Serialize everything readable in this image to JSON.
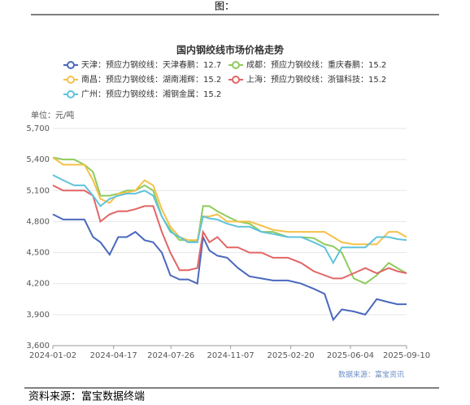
{
  "header": "图：",
  "footer": "资料来源：富宝数据终端",
  "chart_data": {
    "type": "line",
    "title": "国内钢绞线市场价格走势",
    "y_label": "单位：元/吨",
    "source": "数据来源：富宝资讯",
    "grid": true,
    "x": [
      "2024-01-02",
      "2024-01-20",
      "2024-02-08",
      "2024-02-26",
      "2024-03-12",
      "2024-03-25",
      "2024-04-10",
      "2024-04-25",
      "2024-05-10",
      "2024-05-25",
      "2024-06-10",
      "2024-06-25",
      "2024-07-10",
      "2024-07-25",
      "2024-08-10",
      "2024-08-25",
      "2024-09-10",
      "2024-09-20",
      "2024-10-01",
      "2024-10-15",
      "2024-11-01",
      "2024-11-20",
      "2024-12-10",
      "2024-12-31",
      "2025-01-20",
      "2025-02-15",
      "2025-03-10",
      "2025-04-01",
      "2025-04-20",
      "2025-05-05",
      "2025-05-20",
      "2025-06-10",
      "2025-06-30",
      "2025-07-20",
      "2025-08-10",
      "2025-08-25",
      "2025-09-10"
    ],
    "xlim": [
      "2024-01-02",
      "2025-09-10"
    ],
    "xticks": [
      "2024-01-02",
      "2024-04-17",
      "2024-07-26",
      "2024-11-07",
      "2025-02-20",
      "2025-06-04",
      "2025-09-10"
    ],
    "ylim": [
      3600,
      5700
    ],
    "yticks": [
      {
        "value": 3600,
        "label": "3,600"
      },
      {
        "value": 3900,
        "label": "3,900"
      },
      {
        "value": 4200,
        "label": "4,200"
      },
      {
        "value": 4500,
        "label": "4,500"
      },
      {
        "value": 4800,
        "label": "4,800"
      },
      {
        "value": 5100,
        "label": "5,100"
      },
      {
        "value": 5400,
        "label": "5,400"
      },
      {
        "value": 5700,
        "label": "5,700"
      }
    ],
    "series": [
      {
        "name": "天津：预应力钢绞线：天津春鹏：12.7",
        "color": "#4a68bd",
        "values": [
          4870,
          4820,
          4820,
          4820,
          4650,
          4600,
          4480,
          4650,
          4650,
          4700,
          4620,
          4600,
          4500,
          4280,
          4240,
          4240,
          4200,
          4650,
          4520,
          4470,
          4450,
          4350,
          4270,
          4250,
          4230,
          4230,
          4200,
          4150,
          4100,
          3850,
          3950,
          3930,
          3900,
          4050,
          4020,
          4000,
          4000
        ]
      },
      {
        "name": "成都：预应力钢绞线：重庆春鹏：15.2",
        "color": "#8ecb5c",
        "values": [
          5420,
          5400,
          5400,
          5350,
          5280,
          5050,
          5050,
          5070,
          5100,
          5100,
          5150,
          5100,
          4850,
          4720,
          4620,
          4620,
          4600,
          4950,
          4950,
          4900,
          4850,
          4800,
          4780,
          4700,
          4700,
          4650,
          4650,
          4640,
          4580,
          4560,
          4500,
          4250,
          4200,
          4280,
          4400,
          4350,
          4300
        ]
      },
      {
        "name": "南昌：预应力钢绞线：湖南湘辉：15.2",
        "color": "#f4c14a",
        "values": [
          5420,
          5350,
          5350,
          5350,
          5200,
          5020,
          4980,
          5070,
          5080,
          5100,
          5200,
          5150,
          4920,
          4750,
          4650,
          4620,
          4620,
          4850,
          4850,
          4870,
          4800,
          4800,
          4800,
          4760,
          4720,
          4700,
          4700,
          4700,
          4700,
          4650,
          4600,
          4580,
          4580,
          4580,
          4700,
          4700,
          4650
        ]
      },
      {
        "name": "上海：预应力钢绞线：浙锚科技：15.2",
        "color": "#e26565",
        "values": [
          5150,
          5100,
          5100,
          5100,
          5050,
          4800,
          4870,
          4900,
          4900,
          4920,
          4950,
          4950,
          4700,
          4500,
          4330,
          4330,
          4350,
          4700,
          4600,
          4650,
          4550,
          4550,
          4500,
          4500,
          4450,
          4450,
          4400,
          4320,
          4280,
          4250,
          4250,
          4300,
          4350,
          4300,
          4350,
          4320,
          4300
        ]
      },
      {
        "name": "广州：预应力钢绞线：湘钢金属：15.2",
        "color": "#5fc3dc",
        "values": [
          5250,
          5200,
          5150,
          5150,
          5050,
          4950,
          5020,
          5050,
          5070,
          5070,
          5100,
          5050,
          4850,
          4700,
          4650,
          4600,
          4600,
          4850,
          4830,
          4820,
          4780,
          4750,
          4750,
          4700,
          4680,
          4650,
          4650,
          4600,
          4550,
          4400,
          4550,
          4550,
          4550,
          4650,
          4650,
          4630,
          4620
        ]
      }
    ]
  }
}
